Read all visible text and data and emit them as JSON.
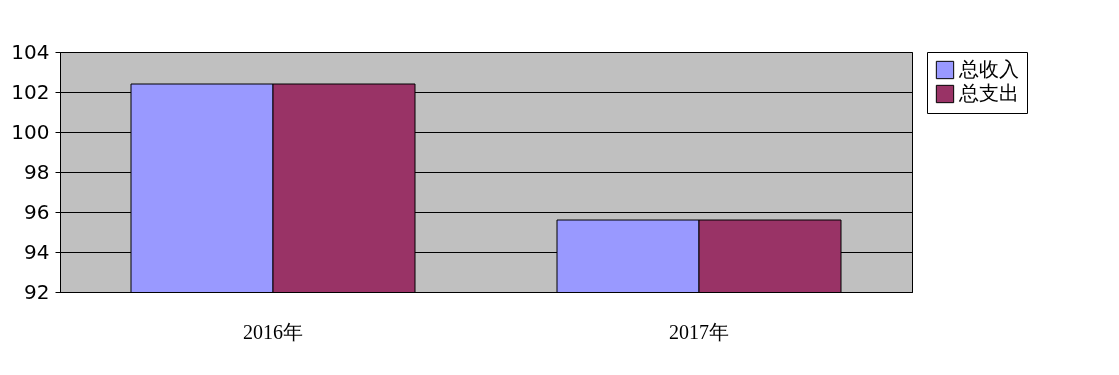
{
  "chart_data": {
    "type": "bar",
    "categories": [
      "2016年",
      "2017年"
    ],
    "series": [
      {
        "name": "总收入",
        "color": "#9999ff",
        "values": [
          102.4,
          95.6
        ]
      },
      {
        "name": "总支出",
        "color": "#993366",
        "values": [
          102.4,
          95.6
        ]
      }
    ],
    "ylim": [
      92,
      104
    ],
    "yticks": [
      92,
      94,
      96,
      98,
      100,
      102,
      104
    ],
    "grid": "y",
    "legend": "right"
  }
}
